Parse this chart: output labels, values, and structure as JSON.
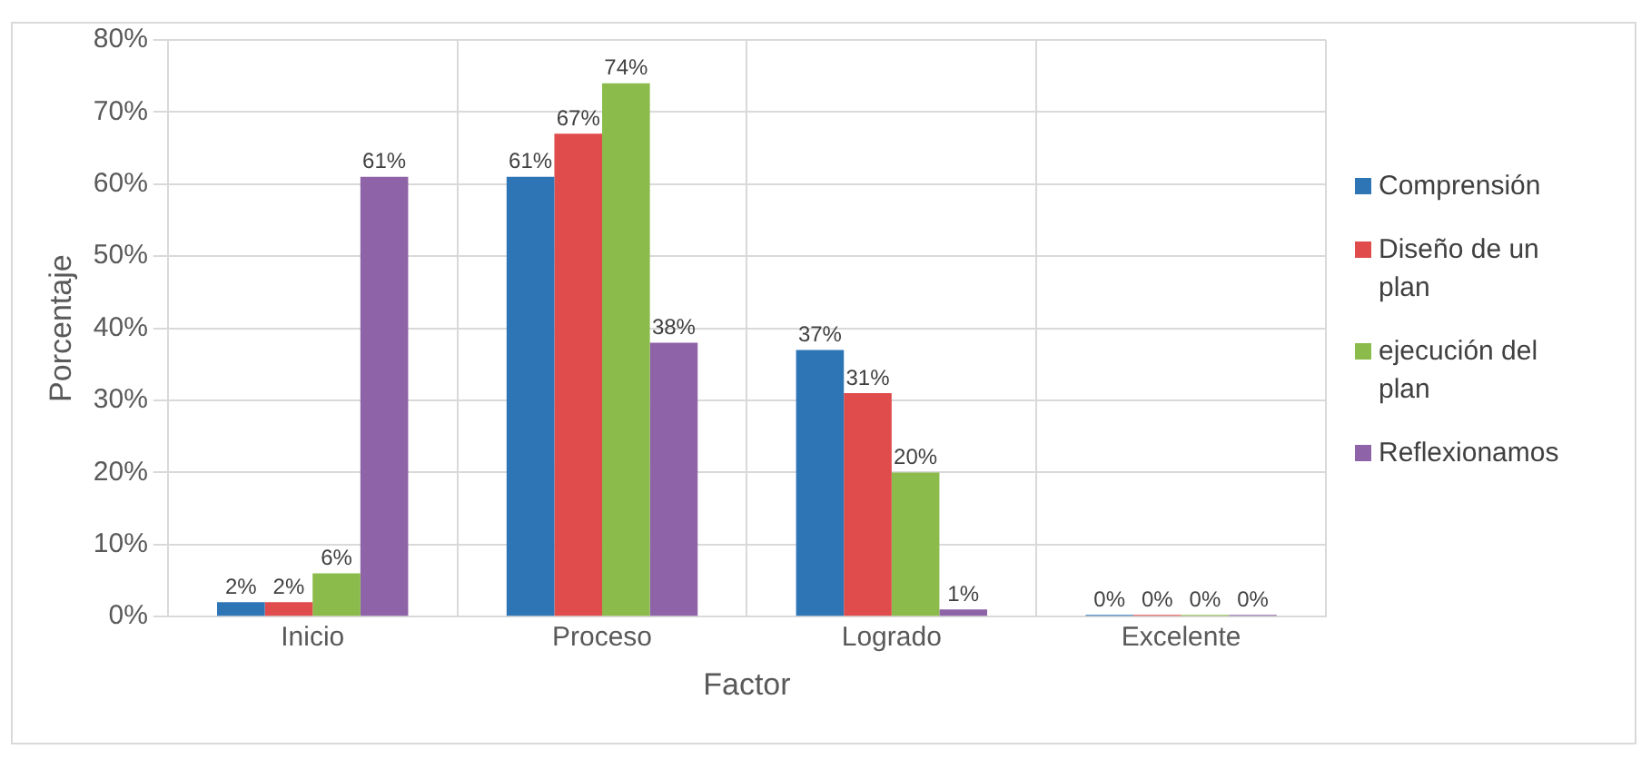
{
  "chart_data": {
    "type": "bar",
    "xlabel": "Factor",
    "ylabel": "Porcentaje",
    "categories": [
      "Inicio",
      "Proceso",
      "Logrado",
      "Excelente"
    ],
    "series": [
      {
        "name": "Comprensión",
        "color": "#2e75b6",
        "values": [
          2,
          61,
          37,
          0
        ],
        "value_labels": [
          "2%",
          "61%",
          "37%",
          "0%"
        ]
      },
      {
        "name": "Diseño de un plan",
        "color": "#e04b4b",
        "values": [
          2,
          67,
          31,
          0
        ],
        "value_labels": [
          "2%",
          "67%",
          "31%",
          "0%"
        ]
      },
      {
        "name": "ejecución del plan",
        "color": "#8bbb4a",
        "values": [
          6,
          74,
          20,
          0
        ],
        "value_labels": [
          "6%",
          "74%",
          "20%",
          "0%"
        ]
      },
      {
        "name": "Reflexionamos",
        "color": "#8e63a8",
        "values": [
          61,
          38,
          1,
          0
        ],
        "value_labels": [
          "61%",
          "38%",
          "1%",
          "0%"
        ]
      }
    ],
    "ylim": [
      0,
      80
    ],
    "yticks": [
      {
        "value": 0,
        "label": "0%"
      },
      {
        "value": 10,
        "label": "10%"
      },
      {
        "value": 20,
        "label": "20%"
      },
      {
        "value": 30,
        "label": "30%"
      },
      {
        "value": 40,
        "label": "40%"
      },
      {
        "value": 50,
        "label": "50%"
      },
      {
        "value": 60,
        "label": "60%"
      },
      {
        "value": 70,
        "label": "70%"
      },
      {
        "value": 80,
        "label": "80%"
      }
    ],
    "grid": true,
    "legend": "right"
  }
}
